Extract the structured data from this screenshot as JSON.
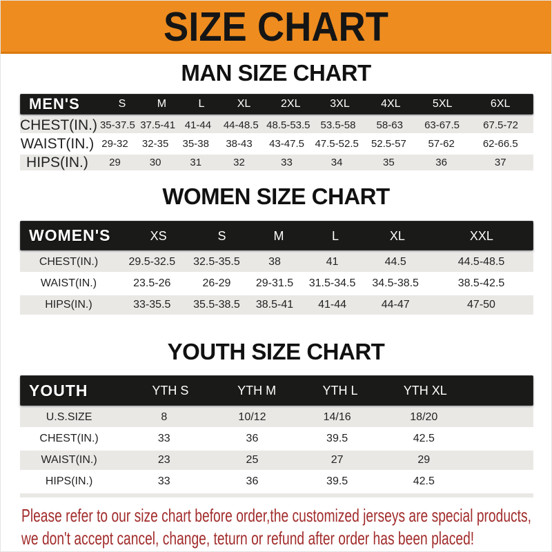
{
  "banner": {
    "title": "SIZE CHART"
  },
  "sections": [
    {
      "id": "men",
      "title": "MAN SIZE CHART",
      "group_label": "MEN'S",
      "columns": [
        "S",
        "M",
        "L",
        "XL",
        "2XL",
        "3XL",
        "4XL",
        "5XL",
        "6XL"
      ],
      "rows": [
        {
          "label": "CHEST(IN.)",
          "values": [
            "35-37.5",
            "37.5-41",
            "41-44",
            "44-48.5",
            "48.5-53.5",
            "53.5-58",
            "58-63",
            "63-67.5",
            "67.5-72"
          ]
        },
        {
          "label": "WAIST(IN.)",
          "values": [
            "29-32",
            "32-35",
            "35-38",
            "38-43",
            "43-47.5",
            "47.5-52.5",
            "52.5-57",
            "57-62",
            "62-66.5"
          ]
        },
        {
          "label": "HIPS(IN.)",
          "values": [
            "29",
            "30",
            "31",
            "32",
            "33",
            "34",
            "35",
            "36",
            "37"
          ]
        }
      ]
    },
    {
      "id": "women",
      "title": "WOMEN SIZE CHART",
      "group_label": "WOMEN'S",
      "columns": [
        "XS",
        "S",
        "M",
        "L",
        "XL",
        "XXL"
      ],
      "rows": [
        {
          "label": "CHEST(IN.)",
          "values": [
            "29.5-32.5",
            "32.5-35.5",
            "38",
            "41",
            "44.5",
            "44.5-48.5"
          ]
        },
        {
          "label": "WAIST(IN.)",
          "values": [
            "23.5-26",
            "26-29",
            "29-31.5",
            "31.5-34.5",
            "34.5-38.5",
            "38.5-42.5"
          ]
        },
        {
          "label": "HIPS(IN.)",
          "values": [
            "33-35.5",
            "35.5-38.5",
            "38.5-41",
            "41-44",
            "44-47",
            "47-50"
          ]
        }
      ]
    },
    {
      "id": "youth",
      "title": "YOUTH SIZE CHART",
      "group_label": "YOUTH",
      "columns": [
        "YTH S",
        "YTH M",
        "YTH L",
        "YTH XL"
      ],
      "rows": [
        {
          "label": "U.S.SIZE",
          "values": [
            "8",
            "10/12",
            "14/16",
            "18/20"
          ]
        },
        {
          "label": "CHEST(IN.)",
          "values": [
            "33",
            "36",
            "39.5",
            "42.5"
          ]
        },
        {
          "label": "WAIST(IN.)",
          "values": [
            "23",
            "25",
            "27",
            "29"
          ]
        },
        {
          "label": "HIPS(IN.)",
          "values": [
            "33",
            "36",
            "39.5",
            "42.5"
          ]
        }
      ]
    }
  ],
  "footer": {
    "lines": [
      "Please refer to our size chart before order,the customized jerseys are special products,",
      "we don't accept cancel, change, teturn or refund after order has been placed!"
    ]
  },
  "colors": {
    "banner_bg": "#ee8c1f",
    "banner_edge": "#d9790f",
    "bar_bg": "#1a1a19",
    "bar_fg": "#ffffff",
    "row_alt_bg": "#e9e8e5",
    "text": "#222222",
    "title_color": "#111111",
    "footer_red": "#a22c2c"
  }
}
